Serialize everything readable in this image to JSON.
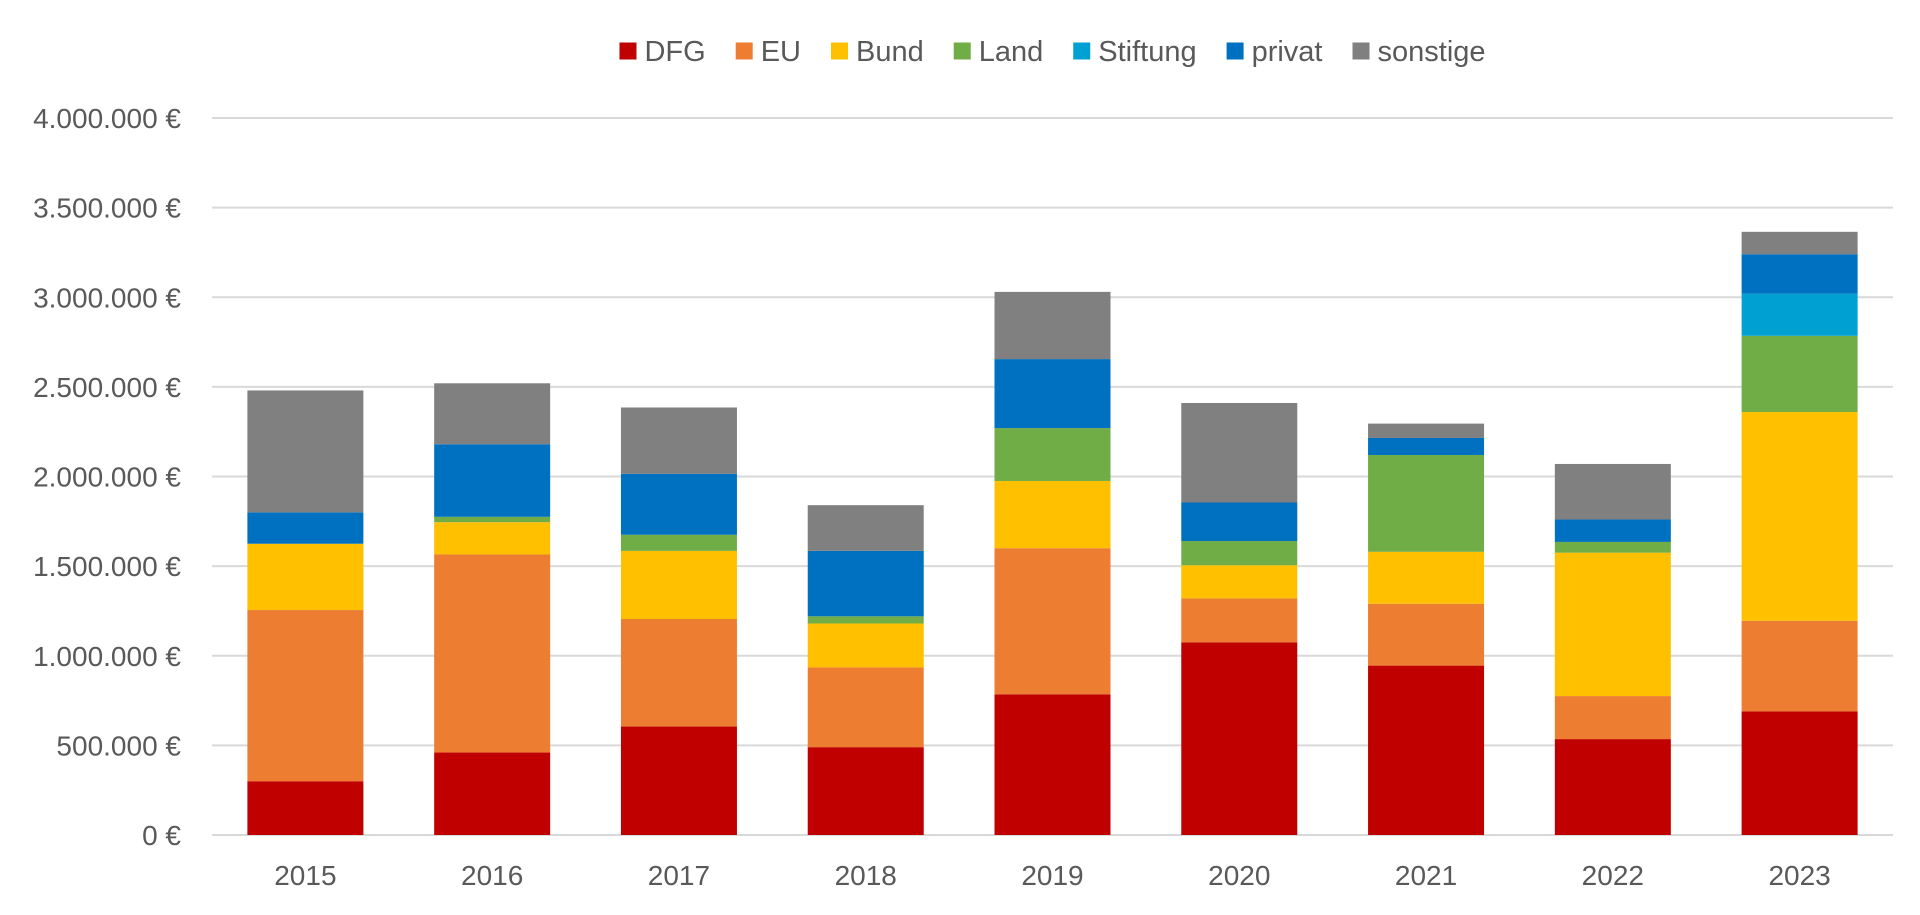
{
  "chart_data": {
    "type": "bar",
    "stacked": true,
    "title": "",
    "xlabel": "",
    "ylabel": "",
    "categories": [
      "2015",
      "2016",
      "2017",
      "2018",
      "2019",
      "2020",
      "2021",
      "2022",
      "2023"
    ],
    "ylim": [
      0,
      4000000
    ],
    "yticks": [
      0,
      500000,
      1000000,
      1500000,
      2000000,
      2500000,
      3000000,
      3500000,
      4000000
    ],
    "ytick_labels": [
      "0 €",
      "500.000 €",
      "1.000.000 €",
      "1.500.000 €",
      "2.000.000 €",
      "2.500.000 €",
      "3.000.000 €",
      "3.500.000 €",
      "4.000.000 €"
    ],
    "grid": true,
    "legend_position": "top-center",
    "series": [
      {
        "name": "DFG",
        "color": "#c00000",
        "values": [
          300000,
          460000,
          605000,
          490000,
          785000,
          1075000,
          945000,
          535000,
          690000
        ]
      },
      {
        "name": "EU",
        "color": "#ed7d31",
        "values": [
          955000,
          1105000,
          600000,
          445000,
          815000,
          245000,
          345000,
          240000,
          505000
        ]
      },
      {
        "name": "Bund",
        "color": "#ffc000",
        "values": [
          370000,
          180000,
          380000,
          245000,
          375000,
          185000,
          290000,
          800000,
          1165000
        ]
      },
      {
        "name": "Land",
        "color": "#70ad47",
        "values": [
          0,
          30000,
          90000,
          40000,
          295000,
          135000,
          540000,
          60000,
          425000
        ]
      },
      {
        "name": "Stiftung",
        "color": "#00a0d2",
        "values": [
          0,
          0,
          0,
          0,
          0,
          0,
          0,
          0,
          235000
        ]
      },
      {
        "name": "privat",
        "color": "#0070c0",
        "values": [
          175000,
          405000,
          340000,
          365000,
          385000,
          215000,
          95000,
          125000,
          220000
        ]
      },
      {
        "name": "sonstige",
        "color": "#808080",
        "values": [
          680000,
          340000,
          370000,
          255000,
          375000,
          555000,
          80000,
          310000,
          125000
        ]
      }
    ]
  }
}
